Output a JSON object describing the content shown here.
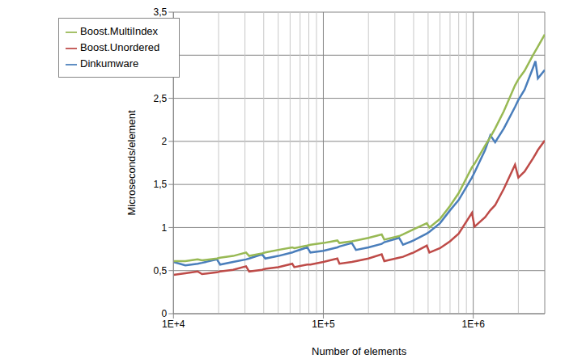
{
  "chart_data": {
    "type": "line",
    "x_label": "Number of elements",
    "y_label": "Microseconds/element",
    "log": "x",
    "grid": true,
    "legend": "top-left",
    "xlim": [
      10000,
      3000000
    ],
    "xticks": [
      {
        "value": 10000,
        "label": "1E+4"
      },
      {
        "value": 100000,
        "label": "1E+5"
      },
      {
        "value": 1000000,
        "label": "1E+6"
      }
    ],
    "ylim": [
      0,
      3.5
    ],
    "yticks": [
      0,
      {
        "value": 0.5,
        "label": "0,5"
      },
      1,
      {
        "value": 1.5,
        "label": "1,5"
      },
      2,
      {
        "value": 2.5,
        "label": "2,5"
      },
      3,
      {
        "value": 3.5,
        "label": "3,5"
      }
    ],
    "x": [
      10000,
      12000,
      14500,
      15500,
      19500,
      20500,
      25000,
      30500,
      32000,
      39000,
      41000,
      50000,
      62000,
      64000,
      78000,
      82000,
      100000,
      124000,
      128000,
      155000,
      165000,
      200000,
      245000,
      255000,
      320000,
      340000,
      400000,
      490000,
      510000,
      600000,
      700000,
      800000,
      980000,
      1020000,
      1200000,
      1300000,
      1400000,
      1600000,
      1900000,
      2000000,
      2200000,
      2500000,
      2600000,
      2700000,
      3000000
    ],
    "series": [
      {
        "name": "Dinkumware",
        "color": "#4a7ebb",
        "values": [
          0.6,
          0.56,
          0.58,
          0.59,
          0.63,
          0.57,
          0.6,
          0.63,
          0.64,
          0.69,
          0.64,
          0.67,
          0.71,
          0.72,
          0.77,
          0.71,
          0.73,
          0.77,
          0.78,
          0.82,
          0.74,
          0.77,
          0.81,
          0.83,
          0.88,
          0.8,
          0.85,
          0.93,
          0.95,
          1.05,
          1.2,
          1.32,
          1.58,
          1.64,
          1.9,
          2.07,
          1.99,
          2.15,
          2.4,
          2.48,
          2.6,
          2.85,
          2.93,
          2.73,
          2.83
        ]
      },
      {
        "name": "Boost.Unordered",
        "color": "#be4b48",
        "values": [
          0.45,
          0.47,
          0.49,
          0.46,
          0.48,
          0.49,
          0.51,
          0.55,
          0.49,
          0.51,
          0.52,
          0.54,
          0.58,
          0.54,
          0.57,
          0.57,
          0.6,
          0.64,
          0.58,
          0.6,
          0.61,
          0.64,
          0.69,
          0.61,
          0.65,
          0.66,
          0.71,
          0.79,
          0.71,
          0.76,
          0.84,
          0.93,
          1.17,
          1.01,
          1.12,
          1.2,
          1.26,
          1.45,
          1.73,
          1.58,
          1.65,
          1.8,
          1.85,
          1.9,
          2.01
        ]
      },
      {
        "name": "Boost.MultiIndex",
        "color": "#98b954",
        "values": [
          0.61,
          0.61,
          0.63,
          0.62,
          0.64,
          0.65,
          0.67,
          0.71,
          0.67,
          0.7,
          0.71,
          0.74,
          0.77,
          0.76,
          0.79,
          0.8,
          0.82,
          0.85,
          0.82,
          0.84,
          0.85,
          0.88,
          0.92,
          0.86,
          0.9,
          0.92,
          0.98,
          1.05,
          1.0,
          1.1,
          1.25,
          1.4,
          1.7,
          1.74,
          1.95,
          2.05,
          2.15,
          2.35,
          2.65,
          2.72,
          2.82,
          3.0,
          3.05,
          3.1,
          3.24
        ]
      }
    ]
  }
}
